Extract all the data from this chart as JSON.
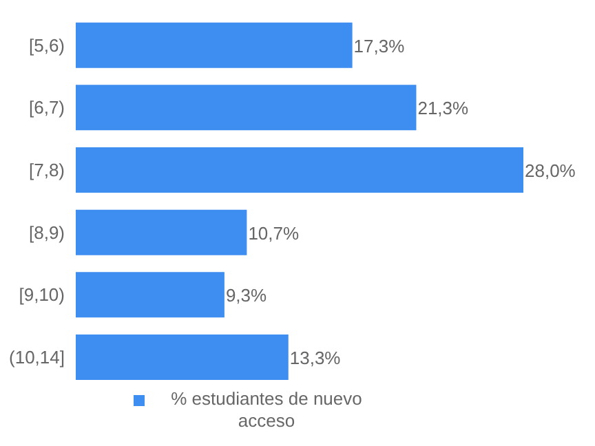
{
  "chart_data": {
    "type": "bar",
    "orientation": "horizontal",
    "categories": [
      "[5,6)",
      "[6,7)",
      "[7,8)",
      "[8,9)",
      "[9,10)",
      "(10,14]"
    ],
    "series": [
      {
        "name": "% estudiantes de nuevo acceso",
        "color": "#3d8ef0",
        "values": [
          17.3,
          21.3,
          28.0,
          10.7,
          9.3,
          13.3
        ],
        "value_labels": [
          "17,3%",
          "21,3%",
          "28,0%",
          "10,7%",
          "9,3%",
          "13,3%"
        ]
      }
    ],
    "legend": "bottom"
  }
}
